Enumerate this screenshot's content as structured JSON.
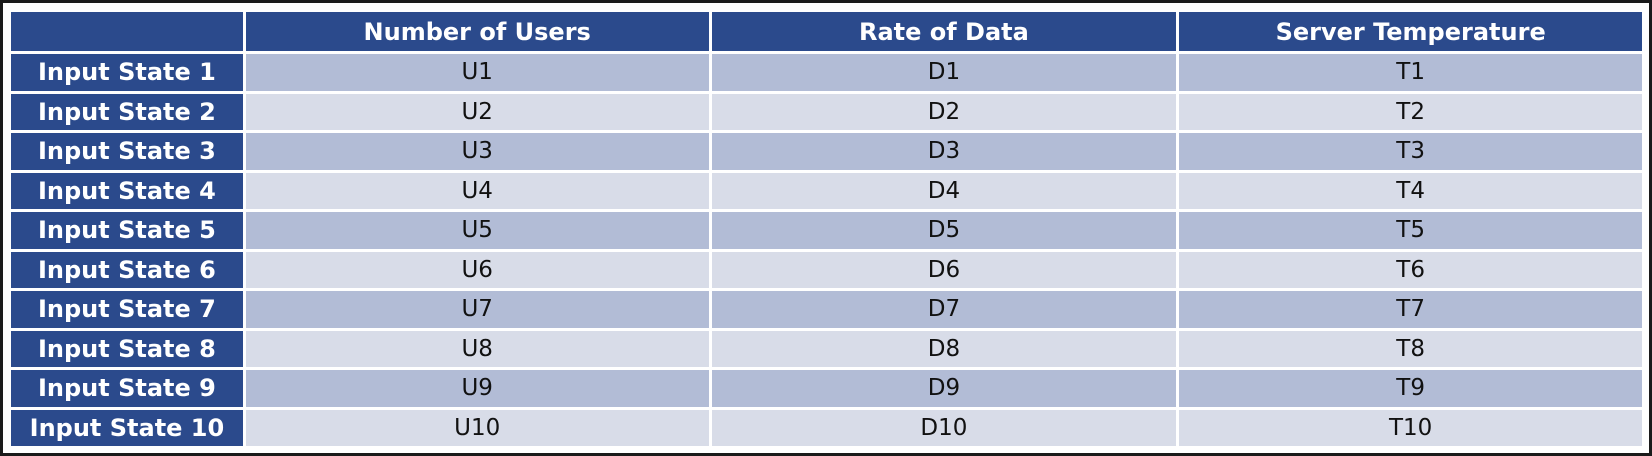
{
  "table": {
    "corner": "",
    "columns": [
      "Number of Users",
      "Rate of Data",
      "Server Temperature"
    ],
    "rows": [
      {
        "label": "Input State 1",
        "cells": [
          "U1",
          "D1",
          "T1"
        ]
      },
      {
        "label": "Input State 2",
        "cells": [
          "U2",
          "D2",
          "T2"
        ]
      },
      {
        "label": "Input State 3",
        "cells": [
          "U3",
          "D3",
          "T3"
        ]
      },
      {
        "label": "Input State 4",
        "cells": [
          "U4",
          "D4",
          "T4"
        ]
      },
      {
        "label": "Input State 5",
        "cells": [
          "U5",
          "D5",
          "T5"
        ]
      },
      {
        "label": "Input State 6",
        "cells": [
          "U6",
          "D6",
          "T6"
        ]
      },
      {
        "label": "Input State 7",
        "cells": [
          "U7",
          "D7",
          "T7"
        ]
      },
      {
        "label": "Input State 8",
        "cells": [
          "U8",
          "D8",
          "T8"
        ]
      },
      {
        "label": "Input State 9",
        "cells": [
          "U9",
          "D9",
          "T9"
        ]
      },
      {
        "label": "Input State 10",
        "cells": [
          "U10",
          "D10",
          "T10"
        ]
      }
    ]
  },
  "colors": {
    "header": "#2b4a8c",
    "row_dark": "#b2bcd6",
    "row_light": "#d8dce8"
  }
}
